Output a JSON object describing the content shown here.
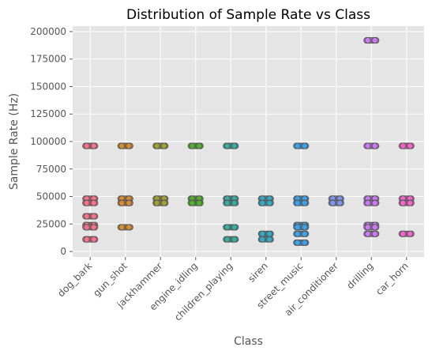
{
  "chart_data": {
    "type": "scatter",
    "title": "Distribution of Sample Rate vs Class",
    "xlabel": "Class",
    "ylabel": "Sample Rate (Hz)",
    "ylim": [
      -5000,
      205000
    ],
    "yticks": [
      0,
      25000,
      50000,
      75000,
      100000,
      125000,
      150000,
      175000,
      200000
    ],
    "grid": true,
    "categories": [
      "dog_bark",
      "gun_shot",
      "jackhammer",
      "engine_idling",
      "children_playing",
      "siren",
      "street_music",
      "air_conditioner",
      "drilling",
      "car_horn"
    ],
    "series": [
      {
        "category": "dog_bark",
        "color": "#f77189",
        "values": [
          96000,
          48000,
          44100,
          32000,
          24000,
          22050,
          11025
        ]
      },
      {
        "category": "gun_shot",
        "color": "#d58c32",
        "values": [
          96000,
          48000,
          44100,
          22050
        ]
      },
      {
        "category": "jackhammer",
        "color": "#a4a031",
        "values": [
          96000,
          48000,
          44100
        ]
      },
      {
        "category": "engine_idling",
        "color": "#50b131",
        "values": [
          96000,
          48000,
          44100
        ]
      },
      {
        "category": "children_playing",
        "color": "#36ada4",
        "values": [
          96000,
          48000,
          44100,
          22050,
          11025
        ]
      },
      {
        "category": "siren",
        "color": "#38a9c5",
        "values": [
          48000,
          44100,
          16000,
          11025
        ]
      },
      {
        "category": "street_music",
        "color": "#3ba3ec",
        "values": [
          96000,
          48000,
          44100,
          24000,
          22050,
          16000,
          8000
        ]
      },
      {
        "category": "air_conditioner",
        "color": "#7d95ea",
        "values": [
          48000,
          44100
        ]
      },
      {
        "category": "drilling",
        "color": "#cc7af4",
        "values": [
          192000,
          96000,
          48000,
          44100,
          24000,
          22050,
          16000
        ]
      },
      {
        "category": "car_horn",
        "color": "#f565cc",
        "values": [
          96000,
          48000,
          44100,
          16000
        ]
      }
    ]
  }
}
